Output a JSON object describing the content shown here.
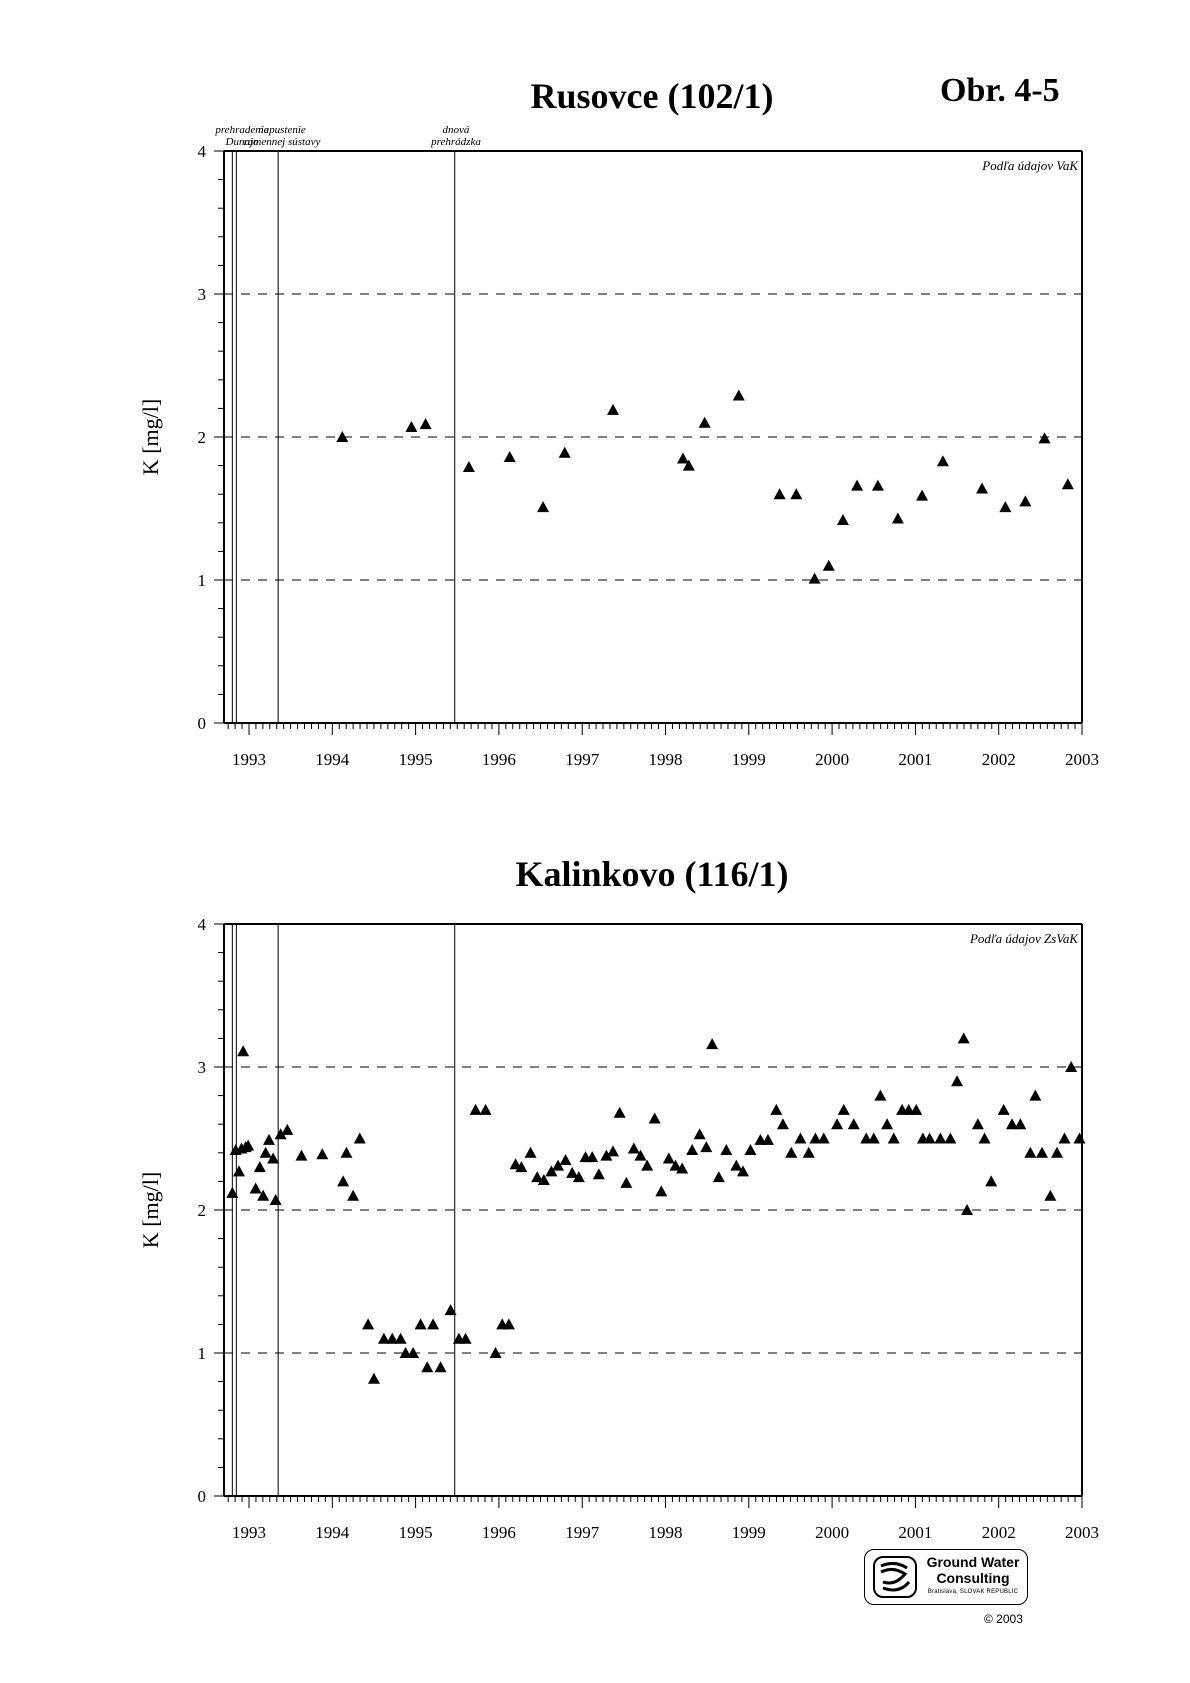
{
  "figure_label": "Obr. 4-5",
  "logo": {
    "name_line1": "Ground Water",
    "name_line2": "Consulting",
    "address": "Bratislava, SLOVAK REPUBLIC",
    "copyright": "© 2003"
  },
  "chart_data": [
    {
      "type": "scatter",
      "title": "Rusovce (102/1)",
      "ylabel": "K  [mg/l]",
      "xlabel": "",
      "source_note": "Podľa údajov VaK",
      "xlim": [
        1992.7,
        2003.0
      ],
      "ylim": [
        0,
        4
      ],
      "x_ticks": [
        1993,
        1994,
        1995,
        1996,
        1997,
        1998,
        1999,
        2000,
        2001,
        2002,
        2003
      ],
      "y_ticks": [
        0,
        1,
        2,
        3,
        4
      ],
      "grid": "dashed horizontal at 1, 2, 3",
      "marker": "filled triangle",
      "events": [
        {
          "x": 1992.8,
          "label": [
            "prehradenie",
            "Dunaja"
          ]
        },
        {
          "x": 1993.35,
          "label": [
            "napustenie",
            "ramennej sústavy"
          ]
        },
        {
          "x": 1995.47,
          "label": [
            "dnová",
            "prehrádzka"
          ]
        }
      ],
      "points": [
        [
          1994.12,
          2.0
        ],
        [
          1994.95,
          2.07
        ],
        [
          1995.12,
          2.09
        ],
        [
          1995.64,
          1.79
        ],
        [
          1996.13,
          1.86
        ],
        [
          1996.53,
          1.51
        ],
        [
          1996.79,
          1.89
        ],
        [
          1997.37,
          2.19
        ],
        [
          1998.21,
          1.85
        ],
        [
          1998.28,
          1.8
        ],
        [
          1998.47,
          2.1
        ],
        [
          1998.88,
          2.29
        ],
        [
          1999.37,
          1.6
        ],
        [
          1999.57,
          1.6
        ],
        [
          1999.79,
          1.01
        ],
        [
          1999.96,
          1.1
        ],
        [
          2000.13,
          1.42
        ],
        [
          2000.3,
          1.66
        ],
        [
          2000.55,
          1.66
        ],
        [
          2000.79,
          1.43
        ],
        [
          2001.08,
          1.59
        ],
        [
          2001.33,
          1.83
        ],
        [
          2001.8,
          1.64
        ],
        [
          2002.08,
          1.51
        ],
        [
          2002.32,
          1.55
        ],
        [
          2002.55,
          1.99
        ],
        [
          2002.83,
          1.67
        ]
      ]
    },
    {
      "type": "scatter",
      "title": "Kalinkovo (116/1)",
      "ylabel": "K  [mg/l]",
      "xlabel": "",
      "source_note": "Podľa údajov ZsVaK",
      "xlim": [
        1992.7,
        2003.0
      ],
      "ylim": [
        0,
        4
      ],
      "x_ticks": [
        1993,
        1994,
        1995,
        1996,
        1997,
        1998,
        1999,
        2000,
        2001,
        2002,
        2003
      ],
      "y_ticks": [
        0,
        1,
        2,
        3,
        4
      ],
      "grid": "dashed horizontal at 1, 2, 3",
      "marker": "filled triangle",
      "events": [
        {
          "x": 1992.8
        },
        {
          "x": 1993.35
        },
        {
          "x": 1995.47
        }
      ],
      "points": [
        [
          1992.8,
          2.12
        ],
        [
          1992.84,
          2.42
        ],
        [
          1992.88,
          2.27
        ],
        [
          1992.91,
          2.43
        ],
        [
          1992.93,
          3.11
        ],
        [
          1992.96,
          2.44
        ],
        [
          1992.99,
          2.45
        ],
        [
          1993.08,
          2.15
        ],
        [
          1993.13,
          2.3
        ],
        [
          1993.17,
          2.1
        ],
        [
          1993.2,
          2.4
        ],
        [
          1993.24,
          2.49
        ],
        [
          1993.29,
          2.36
        ],
        [
          1993.32,
          2.07
        ],
        [
          1993.38,
          2.53
        ],
        [
          1993.46,
          2.56
        ],
        [
          1993.63,
          2.38
        ],
        [
          1993.88,
          2.39
        ],
        [
          1994.13,
          2.2
        ],
        [
          1994.17,
          2.4
        ],
        [
          1994.25,
          2.1
        ],
        [
          1994.33,
          2.5
        ],
        [
          1994.43,
          1.2
        ],
        [
          1994.5,
          0.82
        ],
        [
          1994.62,
          1.1
        ],
        [
          1994.72,
          1.1
        ],
        [
          1994.82,
          1.1
        ],
        [
          1994.88,
          1.0
        ],
        [
          1994.97,
          1.0
        ],
        [
          1995.06,
          1.2
        ],
        [
          1995.14,
          0.9
        ],
        [
          1995.21,
          1.2
        ],
        [
          1995.3,
          0.9
        ],
        [
          1995.42,
          1.3
        ],
        [
          1995.52,
          1.1
        ],
        [
          1995.6,
          1.1
        ],
        [
          1995.72,
          2.7
        ],
        [
          1995.84,
          2.7
        ],
        [
          1995.96,
          1.0
        ],
        [
          1996.04,
          1.2
        ],
        [
          1996.12,
          1.2
        ],
        [
          1996.2,
          2.32
        ],
        [
          1996.27,
          2.3
        ],
        [
          1996.38,
          2.4
        ],
        [
          1996.46,
          2.23
        ],
        [
          1996.54,
          2.21
        ],
        [
          1996.63,
          2.27
        ],
        [
          1996.71,
          2.31
        ],
        [
          1996.8,
          2.35
        ],
        [
          1996.88,
          2.26
        ],
        [
          1996.96,
          2.23
        ],
        [
          1997.04,
          2.37
        ],
        [
          1997.12,
          2.37
        ],
        [
          1997.2,
          2.25
        ],
        [
          1997.29,
          2.38
        ],
        [
          1997.37,
          2.41
        ],
        [
          1997.45,
          2.68
        ],
        [
          1997.53,
          2.19
        ],
        [
          1997.62,
          2.43
        ],
        [
          1997.7,
          2.38
        ],
        [
          1997.78,
          2.31
        ],
        [
          1997.87,
          2.64
        ],
        [
          1997.95,
          2.13
        ],
        [
          1998.04,
          2.36
        ],
        [
          1998.12,
          2.31
        ],
        [
          1998.2,
          2.29
        ],
        [
          1998.32,
          2.42
        ],
        [
          1998.41,
          2.53
        ],
        [
          1998.49,
          2.44
        ],
        [
          1998.56,
          3.16
        ],
        [
          1998.64,
          2.23
        ],
        [
          1998.73,
          2.42
        ],
        [
          1998.85,
          2.31
        ],
        [
          1998.93,
          2.27
        ],
        [
          1999.02,
          2.42
        ],
        [
          1999.14,
          2.49
        ],
        [
          1999.23,
          2.49
        ],
        [
          1999.33,
          2.7
        ],
        [
          1999.41,
          2.6
        ],
        [
          1999.51,
          2.4
        ],
        [
          1999.62,
          2.5
        ],
        [
          1999.72,
          2.4
        ],
        [
          1999.8,
          2.5
        ],
        [
          1999.9,
          2.5
        ],
        [
          2000.06,
          2.6
        ],
        [
          2000.14,
          2.7
        ],
        [
          2000.26,
          2.6
        ],
        [
          2000.41,
          2.5
        ],
        [
          2000.5,
          2.5
        ],
        [
          2000.58,
          2.8
        ],
        [
          2000.66,
          2.6
        ],
        [
          2000.74,
          2.5
        ],
        [
          2000.84,
          2.7
        ],
        [
          2000.92,
          2.7
        ],
        [
          2001.01,
          2.7
        ],
        [
          2001.09,
          2.5
        ],
        [
          2001.17,
          2.5
        ],
        [
          2001.3,
          2.5
        ],
        [
          2001.42,
          2.5
        ],
        [
          2001.5,
          2.9
        ],
        [
          2001.58,
          3.2
        ],
        [
          2001.62,
          2.0
        ],
        [
          2001.75,
          2.6
        ],
        [
          2001.83,
          2.5
        ],
        [
          2001.91,
          2.2
        ],
        [
          2002.06,
          2.7
        ],
        [
          2002.16,
          2.6
        ],
        [
          2002.26,
          2.6
        ],
        [
          2002.38,
          2.4
        ],
        [
          2002.44,
          2.8
        ],
        [
          2002.52,
          2.4
        ],
        [
          2002.62,
          2.1
        ],
        [
          2002.7,
          2.4
        ],
        [
          2002.79,
          2.5
        ],
        [
          2002.87,
          3.0
        ],
        [
          2002.97,
          2.5
        ]
      ]
    }
  ]
}
